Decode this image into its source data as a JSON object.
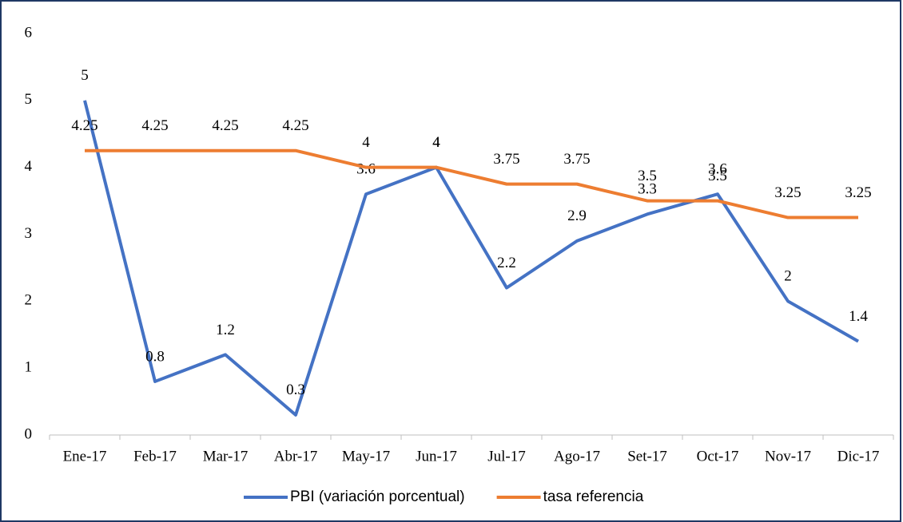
{
  "chart_data": {
    "type": "line",
    "categories": [
      "Ene-17",
      "Feb-17",
      "Mar-17",
      "Abr-17",
      "May-17",
      "Jun-17",
      "Jul-17",
      "Ago-17",
      "Set-17",
      "Oct-17",
      "Nov-17",
      "Dic-17"
    ],
    "series": [
      {
        "name": "PBI (variación porcentual)",
        "color": "#4472c4",
        "values": [
          5,
          0.8,
          1.2,
          0.3,
          3.6,
          4,
          2.2,
          2.9,
          3.3,
          3.6,
          2,
          1.4
        ]
      },
      {
        "name": "tasa referencia",
        "color": "#ed7d31",
        "values": [
          4.25,
          4.25,
          4.25,
          4.25,
          4,
          4,
          3.75,
          3.75,
          3.5,
          3.5,
          3.25,
          3.25
        ]
      }
    ],
    "ylim": [
      0,
      6
    ],
    "yticks": [
      0,
      1,
      2,
      3,
      4,
      5,
      6
    ],
    "grid": false,
    "legend": "bottom"
  }
}
